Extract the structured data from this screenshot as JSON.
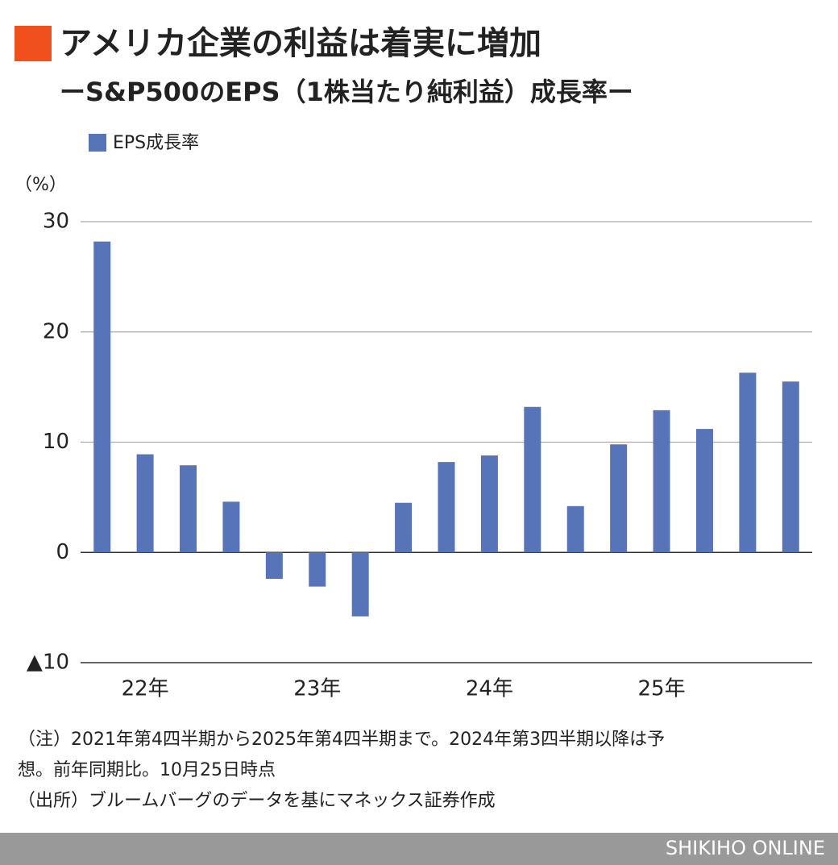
{
  "chart_data": {
    "type": "bar",
    "title": "アメリカ企業の利益は着実に増加",
    "subtitle": "ーS&P500のEPS（1株当たり純利益）成長率ー",
    "y_label": "（%）",
    "categories": [
      null,
      "22年",
      null,
      null,
      null,
      "23年",
      null,
      null,
      null,
      "24年",
      null,
      null,
      null,
      "25年",
      null,
      null,
      null
    ],
    "series": [
      {
        "name": "EPS成長率",
        "color": "#5874b8",
        "values": [
          28.2,
          8.9,
          7.9,
          4.6,
          -2.4,
          -3.1,
          -5.8,
          4.5,
          8.2,
          8.8,
          13.2,
          4.2,
          9.8,
          12.9,
          11.2,
          16.3,
          15.5
        ]
      }
    ],
    "ylim": [
      -10,
      30
    ],
    "yticks": [
      {
        "value": -10,
        "label": "▲10"
      },
      0,
      10,
      20,
      30
    ],
    "grid": true,
    "notes": [
      "（注）2021年第4四半期から2025年第4四半期まで。2024年第3四半期以降は予",
      "想。前年同期比。10月25日時点",
      "（出所）ブルームバーグのデータを基にマネックス証券作成"
    ],
    "credit": "SHIKIHO ONLINE"
  }
}
